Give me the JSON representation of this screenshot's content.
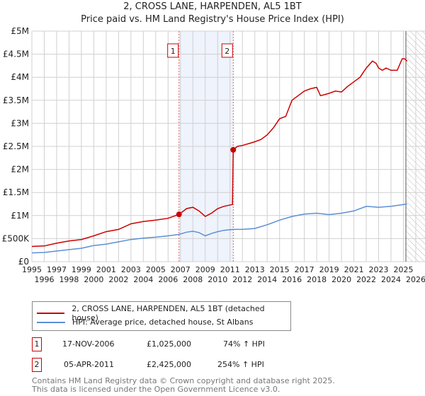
{
  "chart_data": {
    "type": "line",
    "title": "2, CROSS LANE, HARPENDEN, AL5 1BT",
    "subtitle": "Price paid vs. HM Land Registry's House Price Index (HPI)",
    "xlim": [
      1995,
      2026
    ],
    "ylim": [
      0,
      5000000
    ],
    "x_ticks": [
      "1995",
      "1996",
      "1997",
      "1998",
      "1999",
      "2000",
      "2001",
      "2002",
      "2003",
      "2004",
      "2005",
      "2006",
      "2007",
      "2008",
      "2009",
      "2010",
      "2011",
      "2012",
      "2013",
      "2014",
      "2015",
      "2016",
      "2017",
      "2018",
      "2019",
      "2020",
      "2021",
      "2022",
      "2023",
      "2024",
      "2025",
      "2026"
    ],
    "y_ticks": [
      {
        "v": 0,
        "label": "£0"
      },
      {
        "v": 500000,
        "label": "£500K"
      },
      {
        "v": 1000000,
        "label": "£1M"
      },
      {
        "v": 1500000,
        "label": "£1.5M"
      },
      {
        "v": 2000000,
        "label": "£2M"
      },
      {
        "v": 2500000,
        "label": "£2.5M"
      },
      {
        "v": 3000000,
        "label": "£3M"
      },
      {
        "v": 3500000,
        "label": "£3.5M"
      },
      {
        "v": 4000000,
        "label": "£4M"
      },
      {
        "v": 4500000,
        "label": "£4.5M"
      },
      {
        "v": 5000000,
        "label": "£5M"
      }
    ],
    "grid": true,
    "shaded_range": [
      2006.88,
      2011.26
    ],
    "forecast_hatch_from": 2025.2,
    "series": [
      {
        "name": "2, CROSS LANE, HARPENDEN, AL5 1BT (detached house)",
        "color": "#cc0000",
        "x": [
          1995,
          1996,
          1997,
          1998,
          1999,
          2000,
          2001,
          2002,
          2003,
          2004,
          2005,
          2006,
          2006.88,
          2007.5,
          2008,
          2008.5,
          2009,
          2009.5,
          2010,
          2010.5,
          2011.2,
          2011.26,
          2011.6,
          2012,
          2012.5,
          2013,
          2013.5,
          2014,
          2014.5,
          2015,
          2015.5,
          2016,
          2016.5,
          2017,
          2017.5,
          2018,
          2018.3,
          2018.6,
          2019,
          2019.5,
          2020,
          2020.5,
          2021,
          2021.5,
          2022,
          2022.5,
          2022.8,
          2023,
          2023.3,
          2023.6,
          2024,
          2024.5,
          2024.9,
          2025.1,
          2025.3
        ],
        "y": [
          330000,
          340000,
          400000,
          450000,
          480000,
          560000,
          650000,
          700000,
          820000,
          870000,
          900000,
          940000,
          1025000,
          1150000,
          1180000,
          1100000,
          980000,
          1050000,
          1150000,
          1200000,
          1240000,
          2425000,
          2500000,
          2520000,
          2560000,
          2600000,
          2650000,
          2750000,
          2900000,
          3100000,
          3150000,
          3500000,
          3600000,
          3700000,
          3750000,
          3780000,
          3600000,
          3620000,
          3650000,
          3700000,
          3680000,
          3800000,
          3900000,
          4000000,
          4200000,
          4350000,
          4300000,
          4200000,
          4150000,
          4200000,
          4150000,
          4150000,
          4400000,
          4400000,
          4350000
        ]
      },
      {
        "name": "HPI: Average price, detached house, St Albans",
        "color": "#5b8fd6",
        "x": [
          1995,
          1996,
          1997,
          1998,
          1999,
          2000,
          2001,
          2002,
          2003,
          2004,
          2005,
          2006,
          2006.88,
          2007.5,
          2008,
          2008.5,
          2009,
          2009.5,
          2010,
          2010.5,
          2011.26,
          2012,
          2013,
          2014,
          2015,
          2016,
          2017,
          2018,
          2019,
          2020,
          2021,
          2022,
          2023,
          2024,
          2025.3
        ],
        "y": [
          190000,
          200000,
          230000,
          260000,
          290000,
          350000,
          380000,
          430000,
          480000,
          510000,
          530000,
          560000,
          590000,
          640000,
          660000,
          630000,
          560000,
          610000,
          650000,
          680000,
          700000,
          700000,
          720000,
          800000,
          900000,
          980000,
          1030000,
          1050000,
          1020000,
          1050000,
          1100000,
          1200000,
          1180000,
          1200000,
          1250000
        ]
      }
    ],
    "markers": [
      {
        "label": "1",
        "x": 2006.88,
        "y": 1025000
      },
      {
        "label": "2",
        "x": 2011.26,
        "y": 2425000
      }
    ]
  },
  "legend": [
    {
      "label": "2, CROSS LANE, HARPENDEN, AL5 1BT (detached house)",
      "color": "#cc0000"
    },
    {
      "label": "HPI: Average price, detached house, St Albans",
      "color": "#5b8fd6"
    }
  ],
  "transactions": [
    {
      "num": "1",
      "date": "17-NOV-2006",
      "price": "£1,025,000",
      "hpi": "74% ↑ HPI"
    },
    {
      "num": "2",
      "date": "05-APR-2011",
      "price": "£2,425,000",
      "hpi": "254% ↑ HPI"
    }
  ],
  "footer": [
    "Contains HM Land Registry data © Crown copyright and database right 2025.",
    "This data is licensed under the Open Government Licence v3.0."
  ]
}
